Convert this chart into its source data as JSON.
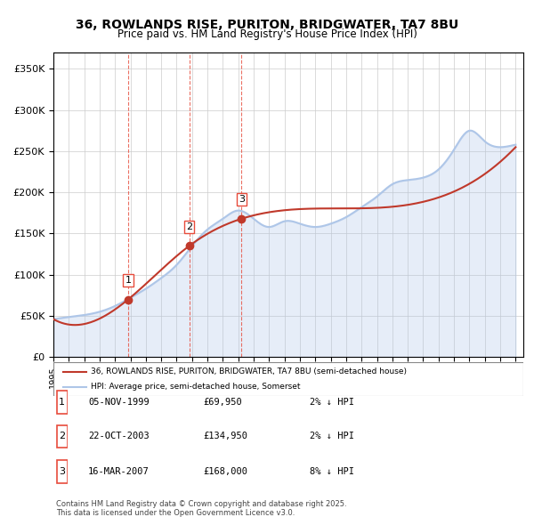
{
  "title": "36, ROWLANDS RISE, PURITON, BRIDGWATER, TA7 8BU",
  "subtitle": "Price paid vs. HM Land Registry's House Price Index (HPI)",
  "legend_line1": "36, ROWLANDS RISE, PURITON, BRIDGWATER, TA7 8BU (semi-detached house)",
  "legend_line2": "HPI: Average price, semi-detached house, Somerset",
  "sale_dates": [
    "1999-11-05",
    "2003-10-22",
    "2007-03-16"
  ],
  "sale_prices": [
    69950,
    134950,
    168000
  ],
  "sale_labels": [
    "1",
    "2",
    "3"
  ],
  "sale_table": [
    [
      "1",
      "05-NOV-1999",
      "£69,950",
      "2% ↓ HPI"
    ],
    [
      "2",
      "22-OCT-2003",
      "£134,950",
      "2% ↓ HPI"
    ],
    [
      "3",
      "16-MAR-2007",
      "£168,000",
      "8% ↓ HPI"
    ]
  ],
  "footer": "Contains HM Land Registry data © Crown copyright and database right 2025.\nThis data is licensed under the Open Government Licence v3.0.",
  "hpi_color": "#aec6e8",
  "price_color": "#c0392b",
  "vline_color": "#e74c3c",
  "background_color": "#ffffff",
  "grid_color": "#cccccc",
  "ylim": [
    0,
    370000
  ],
  "yticks": [
    0,
    50000,
    100000,
    150000,
    200000,
    250000,
    300000,
    350000
  ],
  "hpi_data_years": [
    1995,
    1996,
    1997,
    1998,
    1999,
    2000,
    2001,
    2002,
    2003,
    2004,
    2005,
    2006,
    2007,
    2008,
    2009,
    2010,
    2011,
    2012,
    2013,
    2014,
    2015,
    2016,
    2017,
    2018,
    2019,
    2020,
    2021,
    2022,
    2023,
    2024,
    2025
  ],
  "hpi_values": [
    46000,
    48500,
    51000,
    55000,
    62000,
    72000,
    83000,
    96000,
    112000,
    135000,
    155000,
    168000,
    178000,
    168000,
    158000,
    165000,
    162000,
    158000,
    162000,
    170000,
    182000,
    195000,
    210000,
    215000,
    218000,
    228000,
    252000,
    275000,
    262000,
    255000,
    258000
  ],
  "price_data_x": [
    1995.0,
    1999.85,
    2003.81,
    2007.21,
    2025.0
  ],
  "price_data_y": [
    46000,
    69950,
    134950,
    168000,
    255000
  ]
}
